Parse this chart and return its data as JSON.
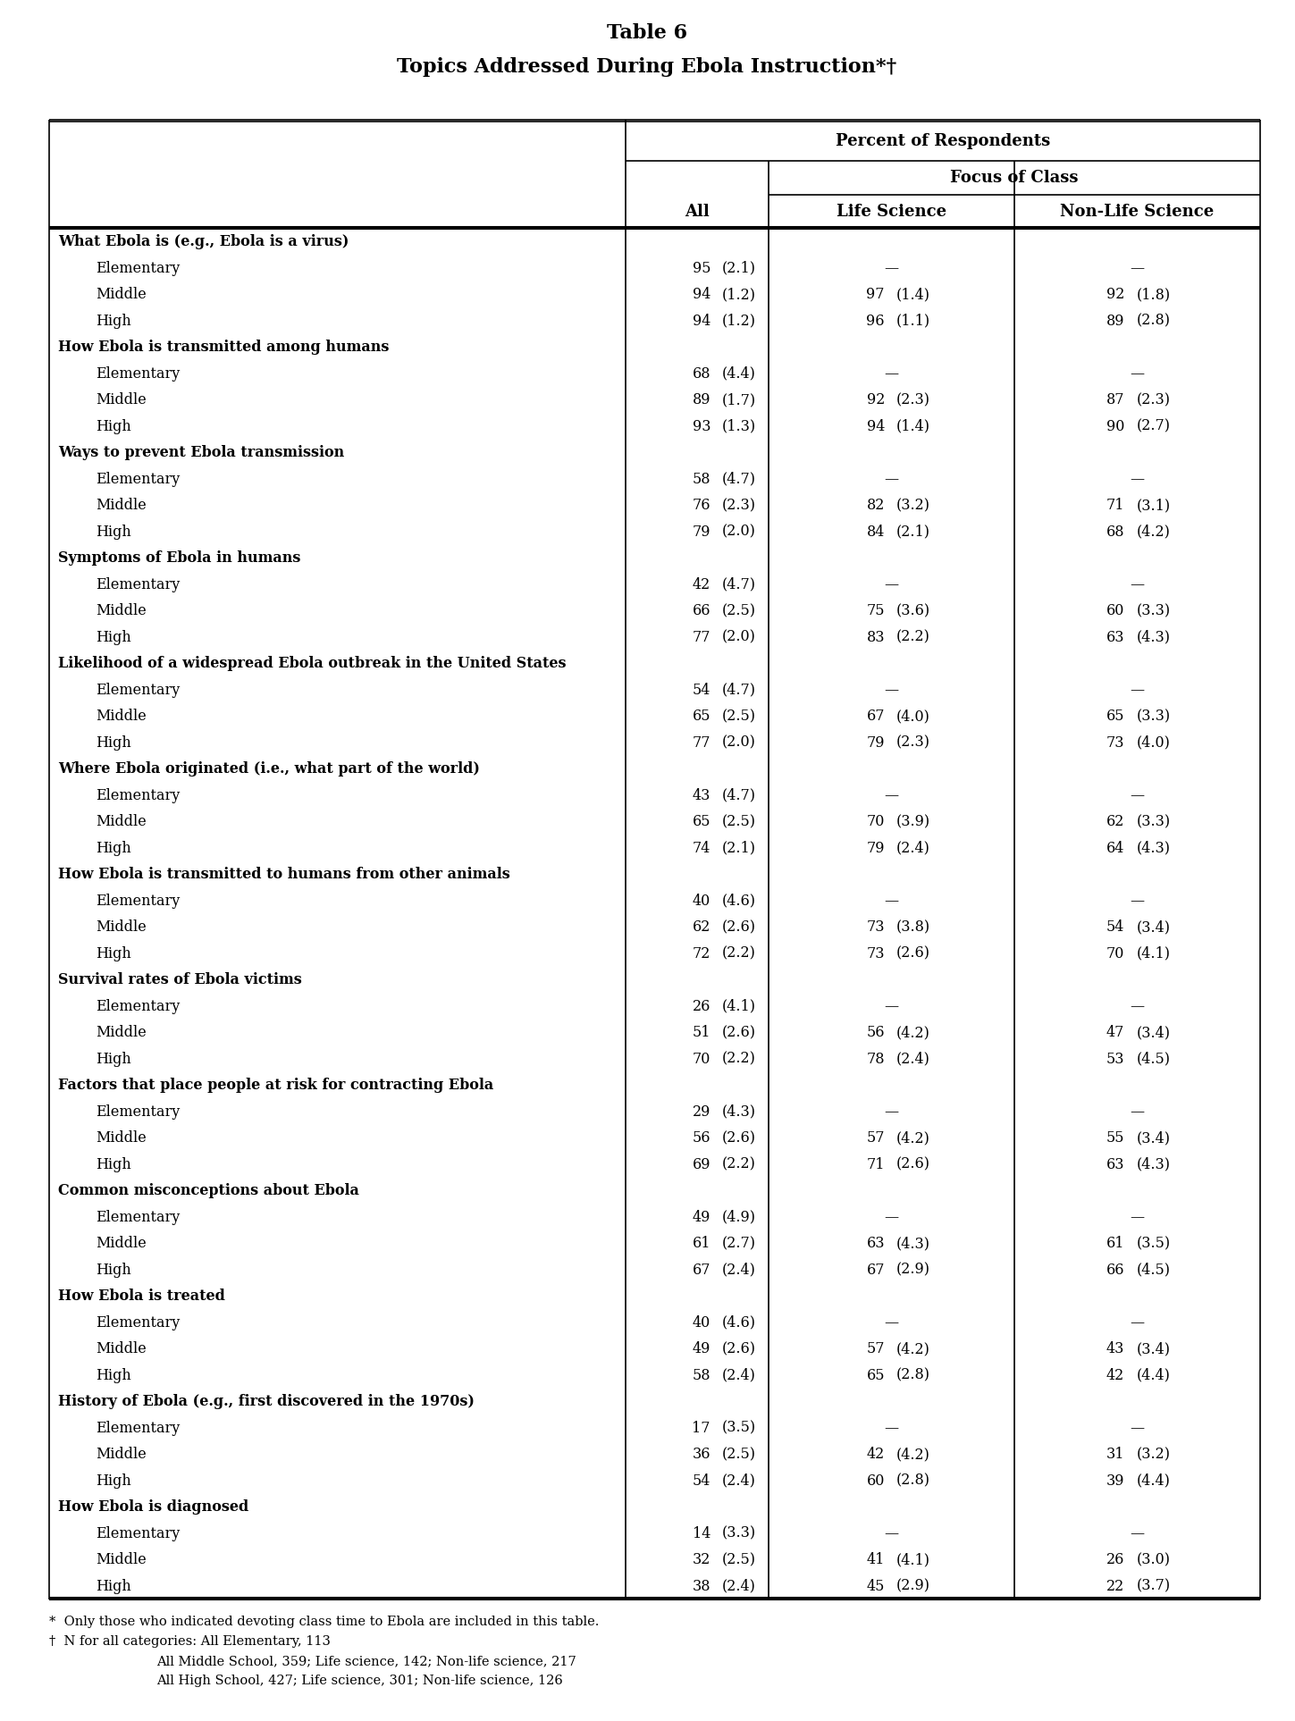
{
  "title_line1": "Table 6",
  "title_line2": "Topics Addressed During Ebola Instruction*†",
  "col_header1": "Percent of Respondents",
  "col_header2": "Focus of Class",
  "col_all": "All",
  "col_life": "Life Science",
  "col_nonlife": "Non-Life Science",
  "footnote1": "*  Only those who indicated devoting class time to Ebola are included in this table.",
  "footnote2": "†  N for all categories: All Elementary, 113",
  "footnote3": "All Middle School, 359; Life science, 142; Non-life science, 217",
  "footnote4": "All High School, 427; Life science, 301; Non-life science, 126",
  "rows": [
    {
      "label": "What Ebola is (e.g., Ebola is a virus)",
      "indent": 0,
      "header": true,
      "all_val": "",
      "all_se": "",
      "life_val": "",
      "life_se": "",
      "nonlife_val": "",
      "nonlife_se": ""
    },
    {
      "label": "Elementary",
      "indent": 1,
      "header": false,
      "all_val": "95",
      "all_se": "(2.1)",
      "life_val": "—",
      "life_se": "",
      "nonlife_val": "—",
      "nonlife_se": ""
    },
    {
      "label": "Middle",
      "indent": 1,
      "header": false,
      "all_val": "94",
      "all_se": "(1.2)",
      "life_val": "97",
      "life_se": "(1.4)",
      "nonlife_val": "92",
      "nonlife_se": "(1.8)"
    },
    {
      "label": "High",
      "indent": 1,
      "header": false,
      "all_val": "94",
      "all_se": "(1.2)",
      "life_val": "96",
      "life_se": "(1.1)",
      "nonlife_val": "89",
      "nonlife_se": "(2.8)"
    },
    {
      "label": "How Ebola is transmitted among humans",
      "indent": 0,
      "header": true,
      "all_val": "",
      "all_se": "",
      "life_val": "",
      "life_se": "",
      "nonlife_val": "",
      "nonlife_se": ""
    },
    {
      "label": "Elementary",
      "indent": 1,
      "header": false,
      "all_val": "68",
      "all_se": "(4.4)",
      "life_val": "—",
      "life_se": "",
      "nonlife_val": "—",
      "nonlife_se": ""
    },
    {
      "label": "Middle",
      "indent": 1,
      "header": false,
      "all_val": "89",
      "all_se": "(1.7)",
      "life_val": "92",
      "life_se": "(2.3)",
      "nonlife_val": "87",
      "nonlife_se": "(2.3)"
    },
    {
      "label": "High",
      "indent": 1,
      "header": false,
      "all_val": "93",
      "all_se": "(1.3)",
      "life_val": "94",
      "life_se": "(1.4)",
      "nonlife_val": "90",
      "nonlife_se": "(2.7)"
    },
    {
      "label": "Ways to prevent Ebola transmission",
      "indent": 0,
      "header": true,
      "all_val": "",
      "all_se": "",
      "life_val": "",
      "life_se": "",
      "nonlife_val": "",
      "nonlife_se": ""
    },
    {
      "label": "Elementary",
      "indent": 1,
      "header": false,
      "all_val": "58",
      "all_se": "(4.7)",
      "life_val": "—",
      "life_se": "",
      "nonlife_val": "—",
      "nonlife_se": ""
    },
    {
      "label": "Middle",
      "indent": 1,
      "header": false,
      "all_val": "76",
      "all_se": "(2.3)",
      "life_val": "82",
      "life_se": "(3.2)",
      "nonlife_val": "71",
      "nonlife_se": "(3.1)"
    },
    {
      "label": "High",
      "indent": 1,
      "header": false,
      "all_val": "79",
      "all_se": "(2.0)",
      "life_val": "84",
      "life_se": "(2.1)",
      "nonlife_val": "68",
      "nonlife_se": "(4.2)"
    },
    {
      "label": "Symptoms of Ebola in humans",
      "indent": 0,
      "header": true,
      "all_val": "",
      "all_se": "",
      "life_val": "",
      "life_se": "",
      "nonlife_val": "",
      "nonlife_se": ""
    },
    {
      "label": "Elementary",
      "indent": 1,
      "header": false,
      "all_val": "42",
      "all_se": "(4.7)",
      "life_val": "—",
      "life_se": "",
      "nonlife_val": "—",
      "nonlife_se": ""
    },
    {
      "label": "Middle",
      "indent": 1,
      "header": false,
      "all_val": "66",
      "all_se": "(2.5)",
      "life_val": "75",
      "life_se": "(3.6)",
      "nonlife_val": "60",
      "nonlife_se": "(3.3)"
    },
    {
      "label": "High",
      "indent": 1,
      "header": false,
      "all_val": "77",
      "all_se": "(2.0)",
      "life_val": "83",
      "life_se": "(2.2)",
      "nonlife_val": "63",
      "nonlife_se": "(4.3)"
    },
    {
      "label": "Likelihood of a widespread Ebola outbreak in the United States",
      "indent": 0,
      "header": true,
      "all_val": "",
      "all_se": "",
      "life_val": "",
      "life_se": "",
      "nonlife_val": "",
      "nonlife_se": ""
    },
    {
      "label": "Elementary",
      "indent": 1,
      "header": false,
      "all_val": "54",
      "all_se": "(4.7)",
      "life_val": "—",
      "life_se": "",
      "nonlife_val": "—",
      "nonlife_se": ""
    },
    {
      "label": "Middle",
      "indent": 1,
      "header": false,
      "all_val": "65",
      "all_se": "(2.5)",
      "life_val": "67",
      "life_se": "(4.0)",
      "nonlife_val": "65",
      "nonlife_se": "(3.3)"
    },
    {
      "label": "High",
      "indent": 1,
      "header": false,
      "all_val": "77",
      "all_se": "(2.0)",
      "life_val": "79",
      "life_se": "(2.3)",
      "nonlife_val": "73",
      "nonlife_se": "(4.0)"
    },
    {
      "label": "Where Ebola originated (i.e., what part of the world)",
      "indent": 0,
      "header": true,
      "all_val": "",
      "all_se": "",
      "life_val": "",
      "life_se": "",
      "nonlife_val": "",
      "nonlife_se": ""
    },
    {
      "label": "Elementary",
      "indent": 1,
      "header": false,
      "all_val": "43",
      "all_se": "(4.7)",
      "life_val": "—",
      "life_se": "",
      "nonlife_val": "—",
      "nonlife_se": ""
    },
    {
      "label": "Middle",
      "indent": 1,
      "header": false,
      "all_val": "65",
      "all_se": "(2.5)",
      "life_val": "70",
      "life_se": "(3.9)",
      "nonlife_val": "62",
      "nonlife_se": "(3.3)"
    },
    {
      "label": "High",
      "indent": 1,
      "header": false,
      "all_val": "74",
      "all_se": "(2.1)",
      "life_val": "79",
      "life_se": "(2.4)",
      "nonlife_val": "64",
      "nonlife_se": "(4.3)"
    },
    {
      "label": "How Ebola is transmitted to humans from other animals",
      "indent": 0,
      "header": true,
      "all_val": "",
      "all_se": "",
      "life_val": "",
      "life_se": "",
      "nonlife_val": "",
      "nonlife_se": ""
    },
    {
      "label": "Elementary",
      "indent": 1,
      "header": false,
      "all_val": "40",
      "all_se": "(4.6)",
      "life_val": "—",
      "life_se": "",
      "nonlife_val": "—",
      "nonlife_se": ""
    },
    {
      "label": "Middle",
      "indent": 1,
      "header": false,
      "all_val": "62",
      "all_se": "(2.6)",
      "life_val": "73",
      "life_se": "(3.8)",
      "nonlife_val": "54",
      "nonlife_se": "(3.4)"
    },
    {
      "label": "High",
      "indent": 1,
      "header": false,
      "all_val": "72",
      "all_se": "(2.2)",
      "life_val": "73",
      "life_se": "(2.6)",
      "nonlife_val": "70",
      "nonlife_se": "(4.1)"
    },
    {
      "label": "Survival rates of Ebola victims",
      "indent": 0,
      "header": true,
      "all_val": "",
      "all_se": "",
      "life_val": "",
      "life_se": "",
      "nonlife_val": "",
      "nonlife_se": ""
    },
    {
      "label": "Elementary",
      "indent": 1,
      "header": false,
      "all_val": "26",
      "all_se": "(4.1)",
      "life_val": "—",
      "life_se": "",
      "nonlife_val": "—",
      "nonlife_se": ""
    },
    {
      "label": "Middle",
      "indent": 1,
      "header": false,
      "all_val": "51",
      "all_se": "(2.6)",
      "life_val": "56",
      "life_se": "(4.2)",
      "nonlife_val": "47",
      "nonlife_se": "(3.4)"
    },
    {
      "label": "High",
      "indent": 1,
      "header": false,
      "all_val": "70",
      "all_se": "(2.2)",
      "life_val": "78",
      "life_se": "(2.4)",
      "nonlife_val": "53",
      "nonlife_se": "(4.5)"
    },
    {
      "label": "Factors that place people at risk for contracting Ebola",
      "indent": 0,
      "header": true,
      "all_val": "",
      "all_se": "",
      "life_val": "",
      "life_se": "",
      "nonlife_val": "",
      "nonlife_se": ""
    },
    {
      "label": "Elementary",
      "indent": 1,
      "header": false,
      "all_val": "29",
      "all_se": "(4.3)",
      "life_val": "—",
      "life_se": "",
      "nonlife_val": "—",
      "nonlife_se": ""
    },
    {
      "label": "Middle",
      "indent": 1,
      "header": false,
      "all_val": "56",
      "all_se": "(2.6)",
      "life_val": "57",
      "life_se": "(4.2)",
      "nonlife_val": "55",
      "nonlife_se": "(3.4)"
    },
    {
      "label": "High",
      "indent": 1,
      "header": false,
      "all_val": "69",
      "all_se": "(2.2)",
      "life_val": "71",
      "life_se": "(2.6)",
      "nonlife_val": "63",
      "nonlife_se": "(4.3)"
    },
    {
      "label": "Common misconceptions about Ebola",
      "indent": 0,
      "header": true,
      "all_val": "",
      "all_se": "",
      "life_val": "",
      "life_se": "",
      "nonlife_val": "",
      "nonlife_se": ""
    },
    {
      "label": "Elementary",
      "indent": 1,
      "header": false,
      "all_val": "49",
      "all_se": "(4.9)",
      "life_val": "—",
      "life_se": "",
      "nonlife_val": "—",
      "nonlife_se": ""
    },
    {
      "label": "Middle",
      "indent": 1,
      "header": false,
      "all_val": "61",
      "all_se": "(2.7)",
      "life_val": "63",
      "life_se": "(4.3)",
      "nonlife_val": "61",
      "nonlife_se": "(3.5)"
    },
    {
      "label": "High",
      "indent": 1,
      "header": false,
      "all_val": "67",
      "all_se": "(2.4)",
      "life_val": "67",
      "life_se": "(2.9)",
      "nonlife_val": "66",
      "nonlife_se": "(4.5)"
    },
    {
      "label": "How Ebola is treated",
      "indent": 0,
      "header": true,
      "all_val": "",
      "all_se": "",
      "life_val": "",
      "life_se": "",
      "nonlife_val": "",
      "nonlife_se": ""
    },
    {
      "label": "Elementary",
      "indent": 1,
      "header": false,
      "all_val": "40",
      "all_se": "(4.6)",
      "life_val": "—",
      "life_se": "",
      "nonlife_val": "—",
      "nonlife_se": ""
    },
    {
      "label": "Middle",
      "indent": 1,
      "header": false,
      "all_val": "49",
      "all_se": "(2.6)",
      "life_val": "57",
      "life_se": "(4.2)",
      "nonlife_val": "43",
      "nonlife_se": "(3.4)"
    },
    {
      "label": "High",
      "indent": 1,
      "header": false,
      "all_val": "58",
      "all_se": "(2.4)",
      "life_val": "65",
      "life_se": "(2.8)",
      "nonlife_val": "42",
      "nonlife_se": "(4.4)"
    },
    {
      "label": "History of Ebola (e.g., first discovered in the 1970s)",
      "indent": 0,
      "header": true,
      "all_val": "",
      "all_se": "",
      "life_val": "",
      "life_se": "",
      "nonlife_val": "",
      "nonlife_se": ""
    },
    {
      "label": "Elementary",
      "indent": 1,
      "header": false,
      "all_val": "17",
      "all_se": "(3.5)",
      "life_val": "—",
      "life_se": "",
      "nonlife_val": "—",
      "nonlife_se": ""
    },
    {
      "label": "Middle",
      "indent": 1,
      "header": false,
      "all_val": "36",
      "all_se": "(2.5)",
      "life_val": "42",
      "life_se": "(4.2)",
      "nonlife_val": "31",
      "nonlife_se": "(3.2)"
    },
    {
      "label": "High",
      "indent": 1,
      "header": false,
      "all_val": "54",
      "all_se": "(2.4)",
      "life_val": "60",
      "life_se": "(2.8)",
      "nonlife_val": "39",
      "nonlife_se": "(4.4)"
    },
    {
      "label": "How Ebola is diagnosed",
      "indent": 0,
      "header": true,
      "all_val": "",
      "all_se": "",
      "life_val": "",
      "life_se": "",
      "nonlife_val": "",
      "nonlife_se": ""
    },
    {
      "label": "Elementary",
      "indent": 1,
      "header": false,
      "all_val": "14",
      "all_se": "(3.3)",
      "life_val": "—",
      "life_se": "",
      "nonlife_val": "—",
      "nonlife_se": ""
    },
    {
      "label": "Middle",
      "indent": 1,
      "header": false,
      "all_val": "32",
      "all_se": "(2.5)",
      "life_val": "41",
      "life_se": "(4.1)",
      "nonlife_val": "26",
      "nonlife_se": "(3.0)"
    },
    {
      "label": "High",
      "indent": 1,
      "header": false,
      "all_val": "38",
      "all_se": "(2.4)",
      "life_val": "45",
      "life_se": "(2.9)",
      "nonlife_val": "22",
      "nonlife_se": "(3.7)"
    }
  ]
}
